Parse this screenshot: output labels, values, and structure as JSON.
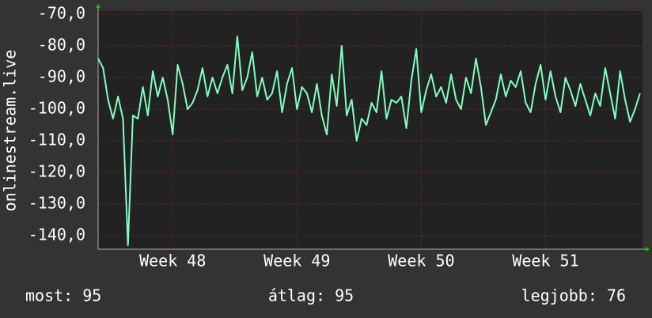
{
  "chart_data": {
    "type": "line",
    "y_label": "onlinestream.live",
    "footer": [
      "most: 95",
      "átlag: 95",
      "legjobb: 76"
    ],
    "xlim": [
      47.4,
      51.78
    ],
    "xticks": [
      {
        "value": 48,
        "label": "Week 48"
      },
      {
        "value": 49,
        "label": "Week 49"
      },
      {
        "value": 50,
        "label": "Week 50"
      },
      {
        "value": 51,
        "label": "Week 51"
      }
    ],
    "ylim": [
      -144.25,
      -69
    ],
    "yticks": [
      {
        "value": -70,
        "label": "-70,0"
      },
      {
        "value": -80,
        "label": "-80,0"
      },
      {
        "value": -90,
        "label": "-90,0"
      },
      {
        "value": -100,
        "label": "-100,0"
      },
      {
        "value": -110,
        "label": "-110,0"
      },
      {
        "value": -120,
        "label": "-120,0"
      },
      {
        "value": -130,
        "label": "-130,0"
      },
      {
        "value": -140,
        "label": "-140,0"
      }
    ],
    "grid": true,
    "x": [
      47.4,
      47.44,
      47.48,
      47.52,
      47.56,
      47.6,
      47.64,
      47.68,
      47.72,
      47.76,
      47.8,
      47.84,
      47.88,
      47.92,
      47.96,
      48.0,
      48.04,
      48.08,
      48.12,
      48.16,
      48.2,
      48.24,
      48.28,
      48.32,
      48.36,
      48.4,
      48.44,
      48.48,
      48.52,
      48.56,
      48.6,
      48.64,
      48.68,
      48.72,
      48.76,
      48.8,
      48.84,
      48.88,
      48.92,
      48.96,
      49.0,
      49.04,
      49.08,
      49.12,
      49.16,
      49.2,
      49.24,
      49.28,
      49.32,
      49.36,
      49.4,
      49.44,
      49.48,
      49.52,
      49.56,
      49.6,
      49.64,
      49.68,
      49.72,
      49.76,
      49.8,
      49.84,
      49.88,
      49.92,
      49.96,
      50.0,
      50.04,
      50.08,
      50.12,
      50.16,
      50.2,
      50.24,
      50.28,
      50.32,
      50.36,
      50.4,
      50.44,
      50.48,
      50.52,
      50.56,
      50.6,
      50.64,
      50.68,
      50.72,
      50.76,
      50.8,
      50.84,
      50.88,
      50.92,
      50.96,
      51.0,
      51.04,
      51.08,
      51.12,
      51.16,
      51.2,
      51.24,
      51.28,
      51.32,
      51.36,
      51.4,
      51.44,
      51.48,
      51.52,
      51.56,
      51.6,
      51.64,
      51.68,
      51.72,
      51.76
    ],
    "series": [
      {
        "color": "#80ffc0",
        "values": [
          -84,
          -87,
          -97,
          -103,
          -96,
          -103,
          -143,
          -102,
          -103,
          -93,
          -102,
          -88,
          -96,
          -90,
          -97,
          -108,
          -86,
          -92,
          -100,
          -98,
          -94,
          -87,
          -96,
          -90,
          -95,
          -90,
          -86,
          -95,
          -77,
          -94,
          -90,
          -82,
          -96,
          -90,
          -97,
          -95,
          -88,
          -101,
          -92,
          -87,
          -100,
          -93,
          -95,
          -101,
          -92,
          -102,
          -108,
          -89,
          -99,
          -80,
          -102,
          -97,
          -110,
          -103,
          -105,
          -98,
          -101,
          -88,
          -103,
          -97,
          -98,
          -96,
          -106,
          -91,
          -81,
          -101,
          -94,
          -89,
          -96,
          -93,
          -98,
          -89,
          -97,
          -100,
          -90,
          -95,
          -84,
          -93,
          -105,
          -101,
          -97,
          -89,
          -96,
          -91,
          -93,
          -88,
          -98,
          -101,
          -92,
          -86,
          -97,
          -88,
          -96,
          -101,
          -90,
          -94,
          -99,
          -92,
          -97,
          -102,
          -95,
          -99,
          -87,
          -95,
          -103,
          -88,
          -97,
          -104,
          -100,
          -95
        ]
      }
    ]
  }
}
